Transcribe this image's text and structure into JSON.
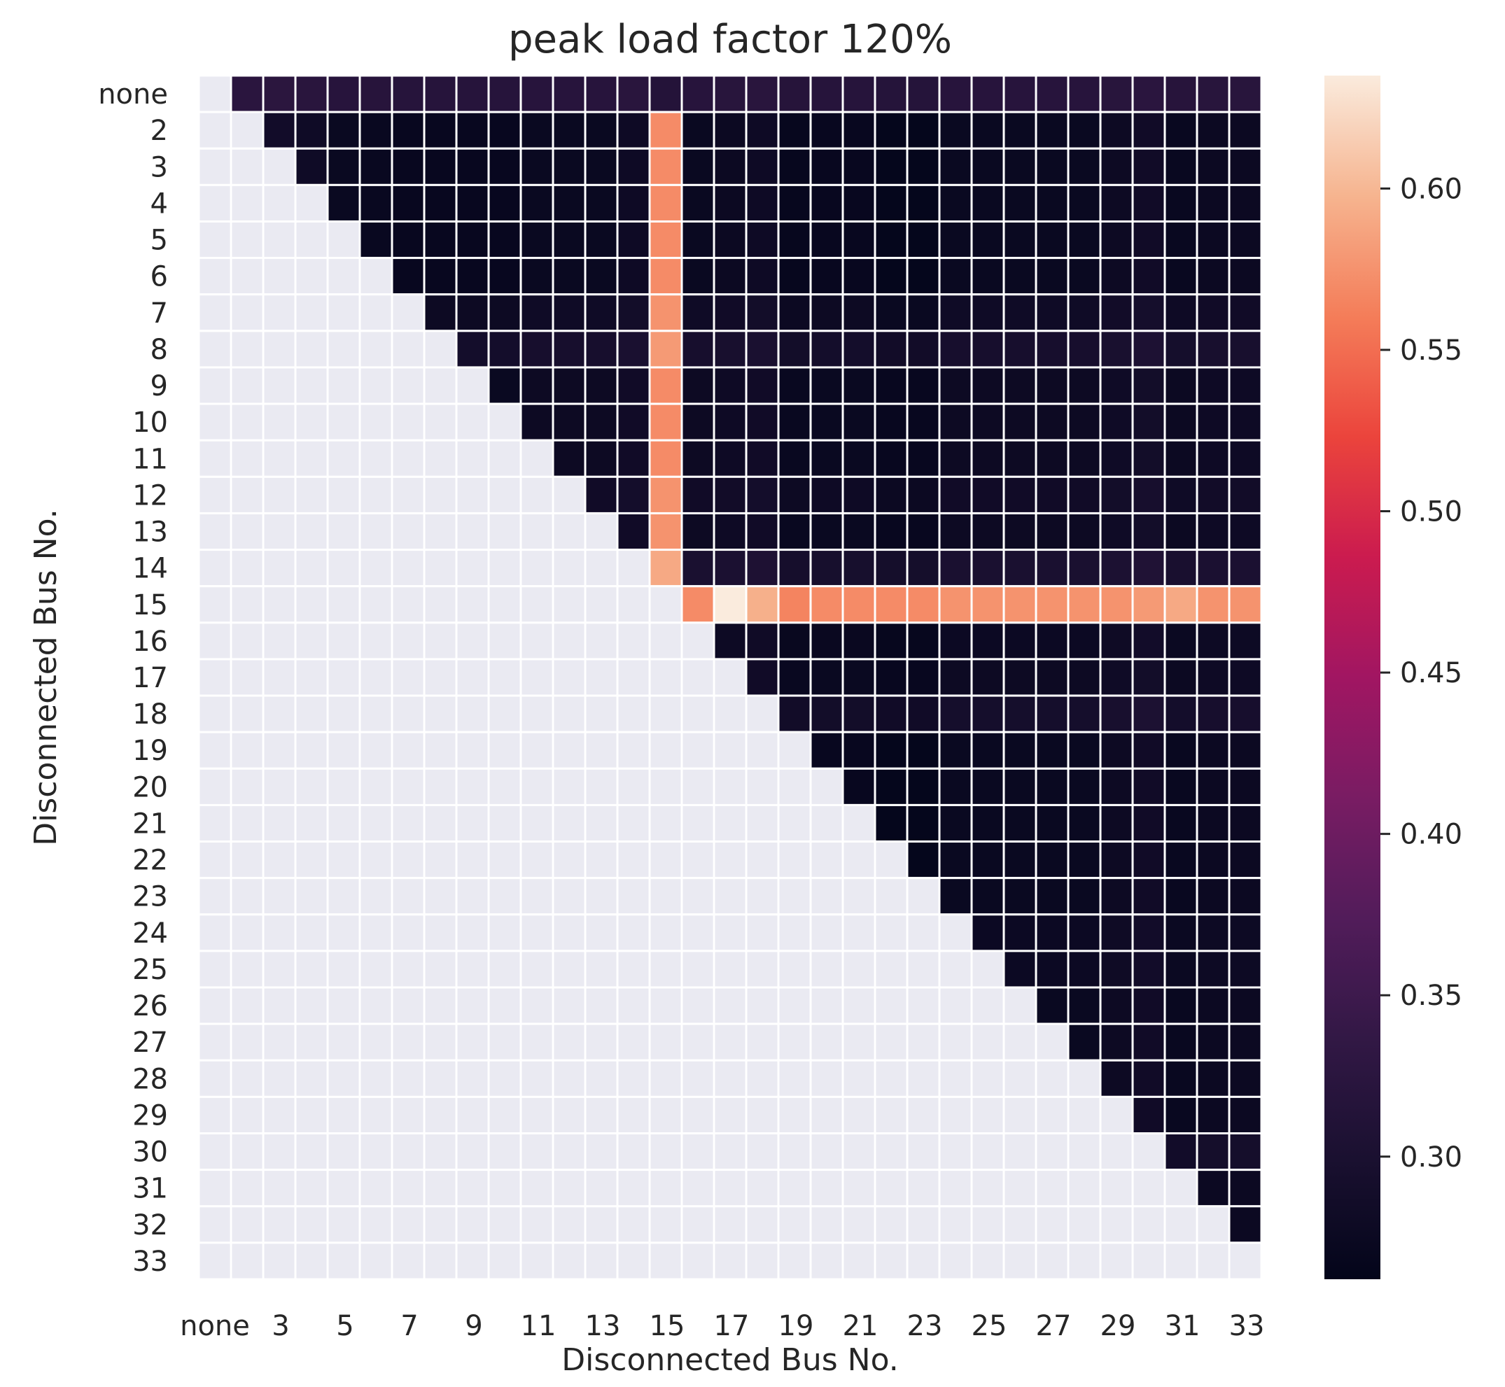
{
  "chart_data": {
    "type": "heatmap",
    "title": "peak load factor 120%",
    "xlabel": "Disconnected Bus No.",
    "ylabel": "Disconnected Bus No.",
    "categories": [
      "none",
      "2",
      "3",
      "4",
      "5",
      "6",
      "7",
      "8",
      "9",
      "10",
      "11",
      "12",
      "13",
      "14",
      "15",
      "16",
      "17",
      "18",
      "19",
      "20",
      "21",
      "22",
      "23",
      "24",
      "25",
      "26",
      "27",
      "28",
      "29",
      "30",
      "31",
      "32",
      "33"
    ],
    "x_tick_labels": [
      "none",
      "3",
      "5",
      "7",
      "9",
      "11",
      "13",
      "15",
      "17",
      "19",
      "21",
      "23",
      "25",
      "27",
      "29",
      "31",
      "33"
    ],
    "y_tick_labels": [
      "none",
      "2",
      "3",
      "4",
      "5",
      "6",
      "7",
      "8",
      "9",
      "10",
      "11",
      "12",
      "13",
      "14",
      "15",
      "16",
      "17",
      "18",
      "19",
      "20",
      "21",
      "22",
      "23",
      "24",
      "25",
      "26",
      "27",
      "28",
      "29",
      "30",
      "31",
      "32",
      "33"
    ],
    "mask": "lower triangle and diagonal are masked (no value)",
    "column_offsets": [
      0,
      0.022,
      0.025,
      0.02,
      0.012,
      0.01,
      0.008,
      0.008,
      0.008,
      0.008,
      0.012,
      0.012,
      0.012,
      0.018,
      0,
      0.012,
      0.014,
      0.018,
      0.006,
      0.008,
      0.008,
      0.004,
      0.004,
      0.012,
      0.012,
      0.012,
      0.012,
      0.012,
      0.016,
      0.022,
      0.01,
      0.014,
      0.014
    ],
    "row_offsets": [
      0.015,
      0,
      0,
      0,
      0,
      0,
      0.008,
      0.02,
      0.004,
      0.004,
      0.004,
      0.01,
      0.004,
      0.025,
      0,
      0.003,
      0.004,
      0.018,
      0,
      0,
      0,
      0,
      0,
      0.003,
      0.003,
      0,
      0,
      0,
      0,
      0.015,
      0,
      0,
      0.01
    ],
    "base_value": 0.262,
    "row_none_value": 0.315,
    "column_15_values": [
      0.315,
      0.57,
      0.57,
      0.57,
      0.57,
      0.57,
      0.575,
      0.58,
      0.57,
      0.57,
      0.57,
      0.575,
      0.575,
      0.59,
      null
    ],
    "row_15_values": [
      0.57,
      0.635,
      0.595,
      0.565,
      0.57,
      0.57,
      0.57,
      0.57,
      0.575,
      0.575,
      0.575,
      0.575,
      0.575,
      0.575,
      0.58,
      0.59,
      0.575,
      0.575
    ],
    "colorbar": {
      "min": 0.262,
      "max": 0.635,
      "ticks": [
        0.3,
        0.35,
        0.4,
        0.45,
        0.5,
        0.55,
        0.6
      ],
      "tick_labels": [
        "0.30",
        "0.35",
        "0.40",
        "0.45",
        "0.50",
        "0.55",
        "0.60"
      ],
      "colormap": "rocket"
    },
    "mask_color": "#eaeaf2",
    "grid_line_color": "#ffffff"
  }
}
